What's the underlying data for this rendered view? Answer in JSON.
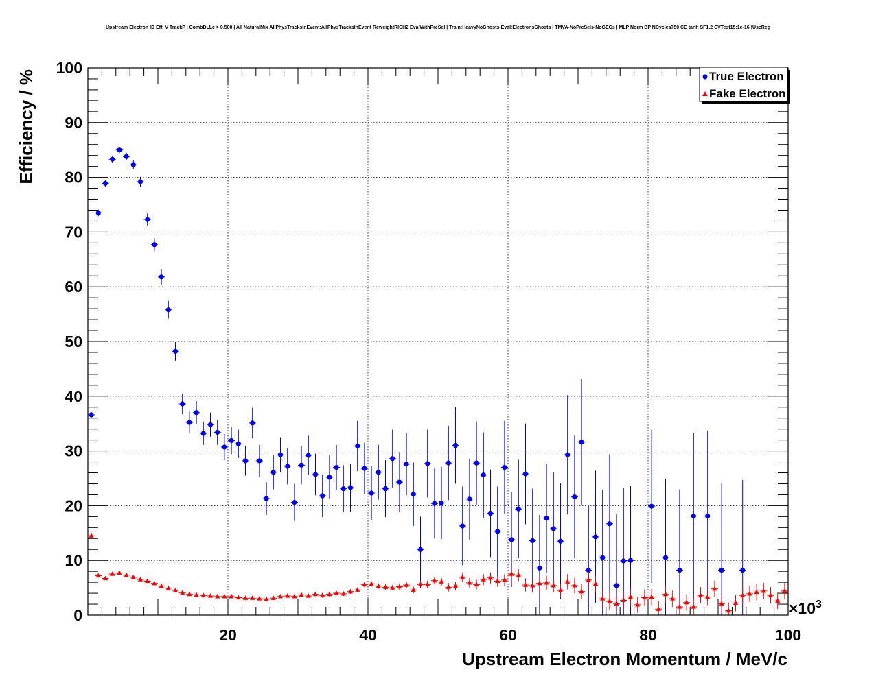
{
  "chart_data": {
    "type": "scatter",
    "title": "Upstream Electron ID Eff. V TrackP | CombDLLe > 0.500 | All NaturalMix AllPhysTracksInEvent:AllPhysTracksInEvent ReweightRICH2 EvalWithPreSel | Train:HeavyNoGhosts-Eval:ElectronsGhosts | TMVA-NoPreSels-NoGECs | MLP Norm BP NCycles750 CE tanh SF1.2 CVTest15:1e-16 !UseReg",
    "xlabel": "Upstream Electron Momentum / MeV/c",
    "ylabel": "Efficiency / %",
    "x_multiplier": "×10",
    "x_multiplier_exp": "3",
    "xlim": [
      0,
      100
    ],
    "ylim": [
      0,
      100
    ],
    "x_ticks": [
      "20",
      "40",
      "60",
      "80",
      "100"
    ],
    "y_ticks": [
      "0",
      "10",
      "20",
      "30",
      "40",
      "50",
      "60",
      "70",
      "80",
      "90",
      "100"
    ],
    "grid": true,
    "legend_position": "top-right",
    "series": [
      {
        "name": "True Electron",
        "color": "#0000ff",
        "marker": "circle",
        "x": [
          0.5,
          1.5,
          2.5,
          3.5,
          4.5,
          5.5,
          6.5,
          7.5,
          8.5,
          9.5,
          10.5,
          11.5,
          12.5,
          13.5,
          14.5,
          15.5,
          16.5,
          17.5,
          18.5,
          19.5,
          20.5,
          21.5,
          22.5,
          23.5,
          24.5,
          25.5,
          26.5,
          27.5,
          28.5,
          29.5,
          30.5,
          31.5,
          32.5,
          33.5,
          34.5,
          35.5,
          36.5,
          37.5,
          38.5,
          39.5,
          40.5,
          41.5,
          42.5,
          43.5,
          44.5,
          45.5,
          46.5,
          47.5,
          48.5,
          49.5,
          50.5,
          51.5,
          52.5,
          53.5,
          54.5,
          55.5,
          56.5,
          57.5,
          58.5,
          59.5,
          60.5,
          61.5,
          62.5,
          63.5,
          64.5,
          65.5,
          66.5,
          67.5,
          68.5,
          69.5,
          70.5,
          71.5,
          72.5,
          73.5,
          74.5,
          75.5,
          76.5,
          77.5,
          80.5,
          82.5,
          84.5,
          86.5,
          88.5,
          90.5,
          93.5
        ],
        "y": [
          36.6,
          73.5,
          78.9,
          83.3,
          85.0,
          83.8,
          82.3,
          79.2,
          72.3,
          67.7,
          61.8,
          55.8,
          48.2,
          38.6,
          35.2,
          37.0,
          33.2,
          34.8,
          33.4,
          30.7,
          31.9,
          31.3,
          28.2,
          35.1,
          28.2,
          21.3,
          26.1,
          29.3,
          27.2,
          20.6,
          27.4,
          29.2,
          25.7,
          21.8,
          25.2,
          27.0,
          23.1,
          23.3,
          30.9,
          26.8,
          22.3,
          26.1,
          23.1,
          28.6,
          24.3,
          27.6,
          22.1,
          12.0,
          27.7,
          20.4,
          20.5,
          27.8,
          31.0,
          16.3,
          21.2,
          27.8,
          25.6,
          18.6,
          15.3,
          27.0,
          13.8,
          19.4,
          25.8,
          13.6,
          8.6,
          17.7,
          15.8,
          13.5,
          29.3,
          21.6,
          31.6,
          8.2,
          14.3,
          10.5,
          16.7,
          5.4,
          9.9,
          10.0,
          19.9,
          10.5,
          8.2,
          18.1,
          18.1,
          8.2,
          8.2
        ],
        "yerr": [
          0.5,
          0.6,
          0.6,
          0.6,
          0.6,
          0.7,
          0.8,
          0.9,
          1.1,
          1.2,
          1.4,
          1.6,
          1.7,
          1.9,
          2.0,
          2.1,
          2.1,
          2.2,
          2.3,
          2.4,
          2.5,
          2.6,
          2.7,
          2.8,
          2.9,
          3.0,
          3.1,
          3.2,
          3.3,
          3.4,
          3.5,
          3.6,
          3.8,
          3.9,
          4.0,
          4.1,
          4.3,
          4.4,
          4.6,
          4.7,
          4.9,
          5.0,
          5.2,
          5.3,
          5.5,
          5.7,
          5.8,
          6.0,
          6.2,
          6.4,
          6.6,
          6.8,
          7.0,
          7.2,
          7.4,
          7.6,
          7.8,
          8.0,
          8.2,
          8.5,
          8.7,
          9.0,
          9.2,
          9.5,
          9.7,
          10.0,
          10.3,
          10.6,
          10.9,
          11.2,
          11.5,
          11.8,
          12.1,
          12.4,
          12.7,
          13.0,
          13.3,
          13.6,
          14.0,
          14.4,
          14.8,
          15.2,
          15.6,
          16.0,
          16.5
        ]
      },
      {
        "name": "Fake Electron",
        "color": "#ff0000",
        "marker": "triangle",
        "x": [
          0.5,
          1.5,
          2.5,
          3.5,
          4.5,
          5.5,
          6.5,
          7.5,
          8.5,
          9.5,
          10.5,
          11.5,
          12.5,
          13.5,
          14.5,
          15.5,
          16.5,
          17.5,
          18.5,
          19.5,
          20.5,
          21.5,
          22.5,
          23.5,
          24.5,
          25.5,
          26.5,
          27.5,
          28.5,
          29.5,
          30.5,
          31.5,
          32.5,
          33.5,
          34.5,
          35.5,
          36.5,
          37.5,
          38.5,
          39.5,
          40.5,
          41.5,
          42.5,
          43.5,
          44.5,
          45.5,
          46.5,
          47.5,
          48.5,
          49.5,
          50.5,
          51.5,
          52.5,
          53.5,
          54.5,
          55.5,
          56.5,
          57.5,
          58.5,
          59.5,
          60.5,
          61.5,
          62.5,
          63.5,
          64.5,
          65.5,
          66.5,
          67.5,
          68.5,
          69.5,
          70.5,
          71.5,
          72.5,
          73.5,
          74.5,
          75.5,
          76.5,
          77.5,
          78.5,
          79.5,
          80.5,
          81.5,
          82.5,
          83.5,
          84.5,
          85.5,
          86.5,
          87.5,
          88.5,
          89.5,
          90.5,
          91.5,
          92.5,
          93.5,
          94.5,
          95.5,
          96.5,
          97.5,
          98.5,
          99.5
        ],
        "y": [
          14.5,
          7.2,
          6.7,
          7.5,
          7.7,
          7.3,
          6.9,
          6.5,
          6.2,
          5.8,
          5.3,
          4.9,
          4.5,
          4.1,
          3.8,
          3.7,
          3.6,
          3.5,
          3.4,
          3.4,
          3.4,
          3.2,
          3.1,
          3.1,
          3.0,
          2.9,
          3.1,
          3.4,
          3.5,
          3.4,
          3.7,
          3.5,
          3.8,
          3.6,
          3.8,
          4.0,
          3.9,
          4.3,
          4.6,
          5.6,
          5.7,
          5.3,
          5.1,
          5.0,
          5.2,
          5.5,
          4.6,
          5.6,
          5.6,
          6.3,
          6.1,
          5.1,
          5.3,
          6.9,
          5.9,
          5.6,
          6.5,
          6.8,
          6.2,
          6.4,
          7.5,
          7.3,
          5.5,
          5.4,
          5.8,
          5.9,
          5.4,
          4.5,
          6.1,
          5.4,
          4.3,
          6.4,
          5.7,
          3.0,
          2.5,
          2.1,
          2.7,
          3.3,
          1.9,
          3.2,
          3.3,
          1.1,
          3.8,
          3.0,
          1.5,
          2.3,
          1.5,
          3.6,
          3.3,
          4.8,
          2.1,
          0.8,
          2.2,
          3.6,
          3.9,
          4.2,
          4.4,
          3.6,
          2.6,
          4.4
        ],
        "yerr": [
          0.6,
          0.3,
          0.3,
          0.3,
          0.3,
          0.3,
          0.3,
          0.3,
          0.3,
          0.3,
          0.3,
          0.3,
          0.3,
          0.3,
          0.3,
          0.3,
          0.3,
          0.3,
          0.3,
          0.3,
          0.3,
          0.3,
          0.3,
          0.3,
          0.3,
          0.3,
          0.3,
          0.3,
          0.3,
          0.3,
          0.3,
          0.3,
          0.3,
          0.4,
          0.4,
          0.4,
          0.4,
          0.4,
          0.4,
          0.5,
          0.5,
          0.5,
          0.5,
          0.5,
          0.6,
          0.6,
          0.6,
          0.7,
          0.7,
          0.7,
          0.7,
          0.8,
          0.8,
          0.9,
          0.9,
          0.9,
          1.0,
          1.0,
          1.0,
          1.1,
          1.1,
          1.1,
          1.2,
          1.2,
          1.2,
          1.3,
          1.3,
          1.3,
          1.4,
          1.4,
          1.4,
          1.5,
          1.5,
          1.5,
          1.5,
          1.5,
          1.5,
          1.5,
          1.5,
          1.5,
          1.5,
          1.5,
          1.5,
          1.5,
          1.5,
          1.5,
          1.5,
          1.5,
          1.5,
          1.5,
          1.5,
          1.5,
          1.5,
          1.5,
          1.5,
          1.5,
          1.5,
          1.5,
          1.5,
          1.5
        ]
      }
    ]
  }
}
